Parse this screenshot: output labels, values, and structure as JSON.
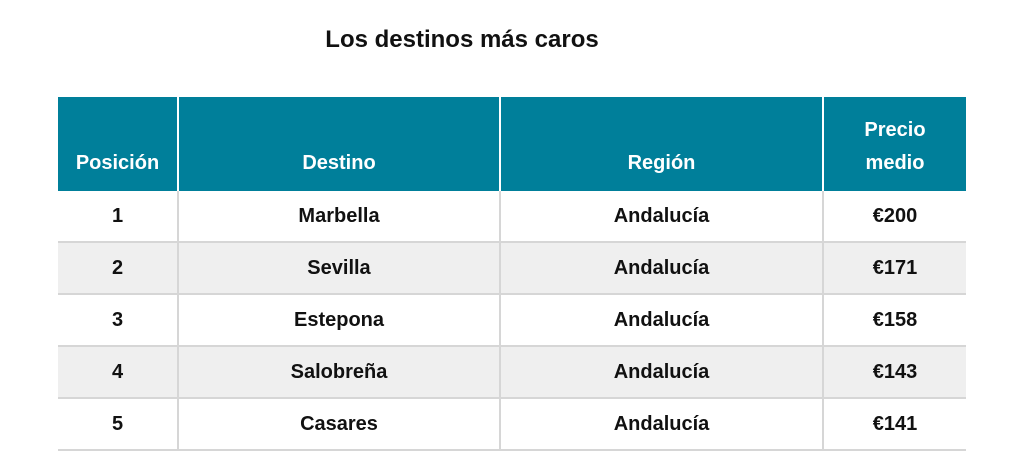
{
  "title": "Los destinos más caros",
  "table": {
    "header": [
      "Posición",
      "Destino",
      "Región",
      "Precio medio"
    ],
    "rows": [
      [
        "1",
        "Marbella",
        "Andalucía",
        "€200"
      ],
      [
        "2",
        "Sevilla",
        "Andalucía",
        "€171"
      ],
      [
        "3",
        "Estepona",
        "Andalucía",
        "€158"
      ],
      [
        "4",
        "Salobreña",
        "Andalucía",
        "€143"
      ],
      [
        "5",
        "Casares",
        "Andalucía",
        "€141"
      ]
    ]
  }
}
